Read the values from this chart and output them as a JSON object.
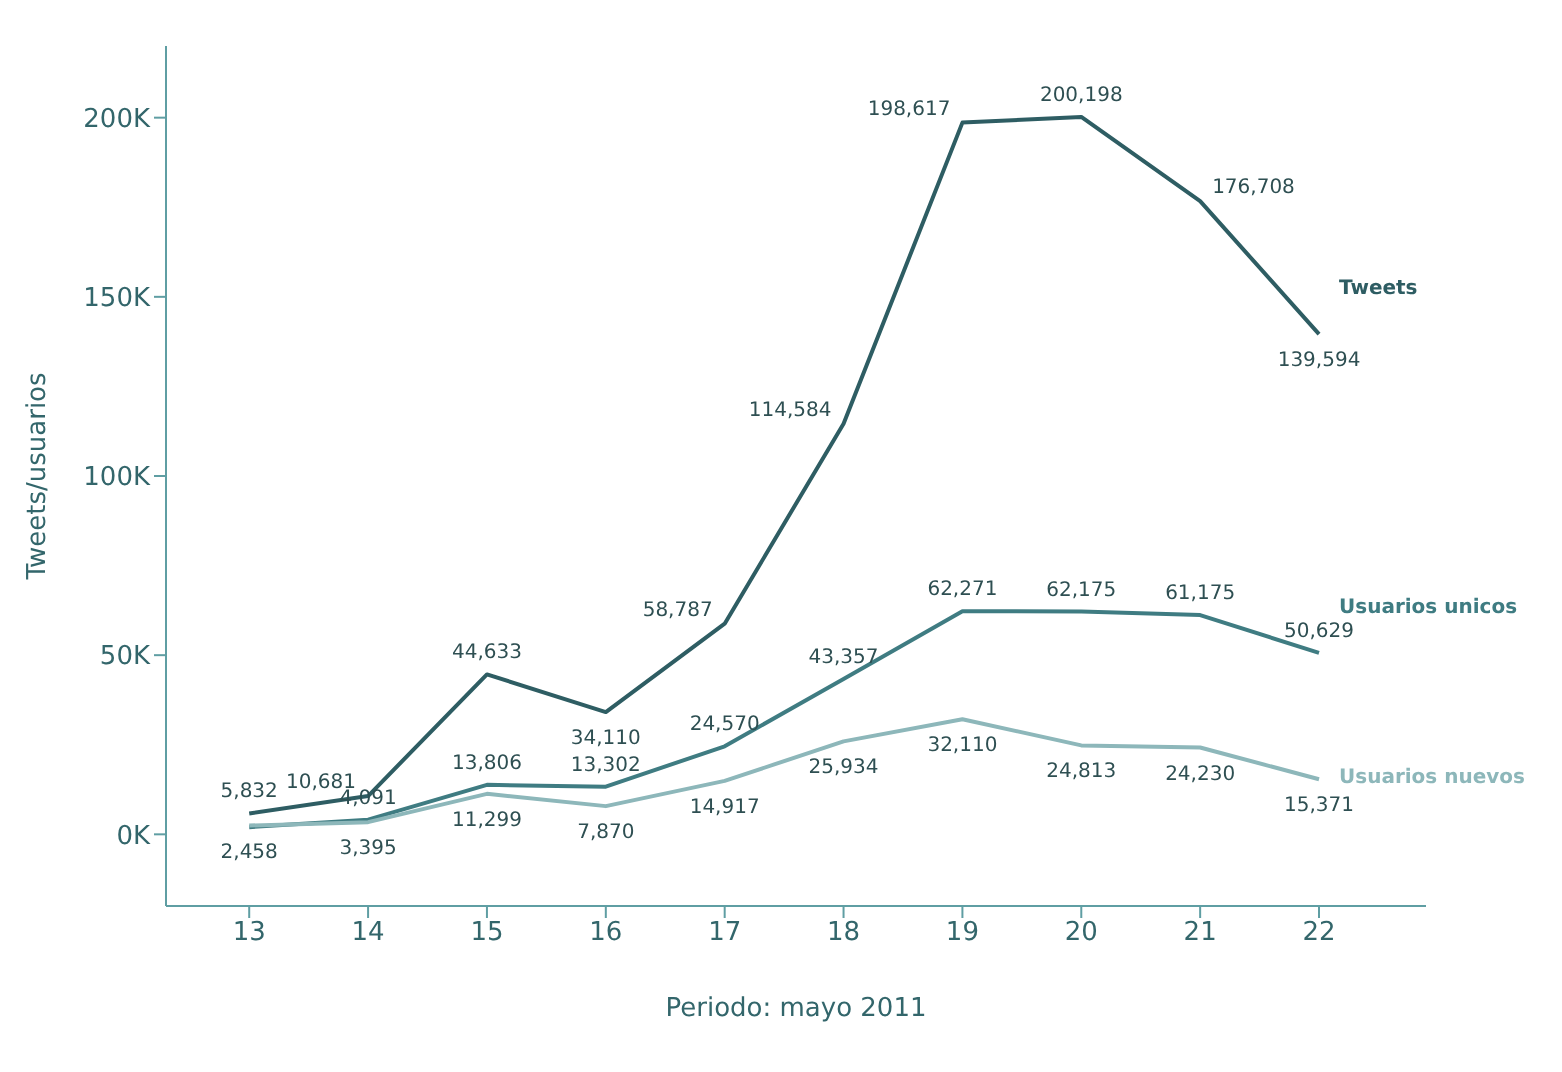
{
  "chart_data": {
    "type": "line",
    "xlabel": "Periodo: mayo 2011",
    "ylabel": "Tweets/usuarios",
    "x": [
      13,
      14,
      15,
      16,
      17,
      18,
      19,
      20,
      21,
      22
    ],
    "xlim": [
      12.3,
      22.9
    ],
    "xticks": [
      13,
      14,
      15,
      16,
      17,
      18,
      19,
      20,
      21,
      22
    ],
    "ylim": [
      -20000,
      220000
    ],
    "yticks": [
      {
        "value": 0,
        "label": "0K"
      },
      {
        "value": 50000,
        "label": "50K"
      },
      {
        "value": 100000,
        "label": "100K"
      },
      {
        "value": 150000,
        "label": "150K"
      },
      {
        "value": 200000,
        "label": "200K"
      }
    ],
    "grid": false,
    "legend": false,
    "marker": "none",
    "line_style": "solid",
    "series": [
      {
        "name": "Tweets",
        "color": "#2e5d63",
        "values": [
          5832,
          10681,
          44633,
          34110,
          58787,
          114584,
          198617,
          200198,
          176708,
          139594
        ],
        "value_labels": [
          "5,832",
          "10,681",
          "44,633",
          "34,110",
          "58,787",
          "114,584",
          "198,617",
          "200,198",
          "176,708",
          "139,594"
        ]
      },
      {
        "name": "Usuarios unicos",
        "color": "#3f7c82",
        "values": [
          2000,
          4091,
          13806,
          13302,
          24570,
          43357,
          62271,
          62175,
          61175,
          50629
        ],
        "value_labels": [
          null,
          "4,091",
          "13,806",
          "13,302",
          "24,570",
          "43,357",
          "62,271",
          "62,175",
          "61,175",
          "50,629"
        ]
      },
      {
        "name": "Usuarios nuevos",
        "color": "#8db7ba",
        "values": [
          2458,
          3395,
          11299,
          7870,
          14917,
          25934,
          32110,
          24813,
          24230,
          15371
        ],
        "value_labels": [
          "2,458",
          "3,395",
          "11,299",
          "7,870",
          "14,917",
          "25,934",
          "32,110",
          "24,813",
          "24,230",
          "15,371"
        ]
      }
    ]
  }
}
